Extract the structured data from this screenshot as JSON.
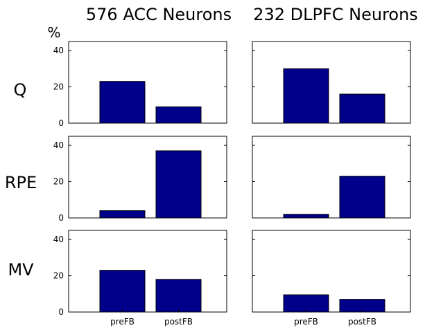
{
  "chart_data": {
    "type": "bar",
    "unit_label": "%",
    "ylim": [
      0,
      45
    ],
    "yticks": [
      0,
      20,
      40
    ],
    "categories": [
      "preFB",
      "postFB"
    ],
    "bar_color": "#00008b",
    "columns": [
      {
        "title": "576 ACC Neurons"
      },
      {
        "title": "232 DLPFC Neurons"
      }
    ],
    "rows": [
      {
        "label": "Q"
      },
      {
        "label": "RPE"
      },
      {
        "label": "MV"
      }
    ],
    "panels": [
      {
        "row": "Q",
        "column": "576 ACC Neurons",
        "values": [
          23,
          9
        ]
      },
      {
        "row": "Q",
        "column": "232 DLPFC Neurons",
        "values": [
          30,
          16
        ]
      },
      {
        "row": "RPE",
        "column": "576 ACC Neurons",
        "values": [
          4,
          37
        ]
      },
      {
        "row": "RPE",
        "column": "232 DLPFC Neurons",
        "values": [
          2,
          23
        ]
      },
      {
        "row": "MV",
        "column": "576 ACC Neurons",
        "values": [
          23,
          18
        ]
      },
      {
        "row": "MV",
        "column": "232 DLPFC Neurons",
        "values": [
          9.5,
          7
        ]
      }
    ]
  }
}
